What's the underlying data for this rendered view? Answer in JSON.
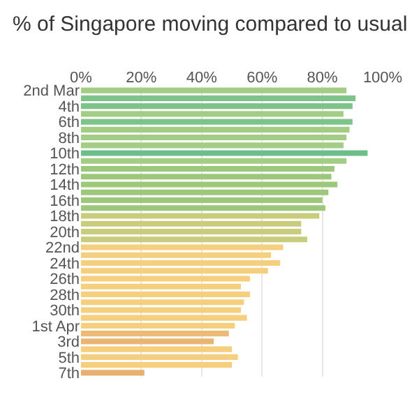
{
  "chart_data": {
    "type": "bar",
    "orientation": "horizontal",
    "title": "% of Singapore moving compared to usual",
    "categories": [
      "2nd Mar",
      null,
      "4th",
      null,
      "6th",
      null,
      "8th",
      null,
      "10th",
      null,
      "12th",
      null,
      "14th",
      null,
      "16th",
      null,
      "18th",
      null,
      "20th",
      null,
      "22nd",
      null,
      "24th",
      null,
      "26th",
      null,
      "28th",
      null,
      "30th",
      null,
      "1st Apr",
      null,
      "3rd",
      null,
      "5th",
      null,
      "7th"
    ],
    "values": [
      88,
      91,
      90,
      87,
      90,
      89,
      88,
      87,
      95,
      88,
      84,
      83,
      85,
      82,
      80,
      81,
      79,
      73,
      73,
      75,
      67,
      63,
      66,
      62,
      56,
      53,
      56,
      54,
      53,
      55,
      51,
      49,
      44,
      50,
      52,
      50,
      21
    ],
    "colors": [
      "#a3cd84",
      "#7ec48a",
      "#7ec48a",
      "#a3cd84",
      "#7ec48a",
      "#a3cd84",
      "#a3cd84",
      "#a3cd84",
      "#6cbf8a",
      "#a3cd84",
      "#9dc77a",
      "#9dc77a",
      "#9dc77a",
      "#9dc77a",
      "#9dc77a",
      "#9dc77a",
      "#c8cc7c",
      "#c8cc7c",
      "#c8cc7c",
      "#c8cc7c",
      "#f5cf7e",
      "#f5cf7e",
      "#f5cf7e",
      "#f5cf7e",
      "#f5cf7e",
      "#f5cf7e",
      "#f5cf7e",
      "#f5cf7e",
      "#f5cf7e",
      "#f5cf7e",
      "#f5cf7e",
      "#edb977",
      "#e8b573",
      "#f5cf7e",
      "#f5cf7e",
      "#f5cf7e",
      "#e8b06e"
    ],
    "xlim": [
      0,
      100
    ],
    "xticks": [
      {
        "value": 0,
        "label": "0%"
      },
      {
        "value": 20,
        "label": "20%"
      },
      {
        "value": 40,
        "label": "40%"
      },
      {
        "value": 60,
        "label": "60%"
      },
      {
        "value": 80,
        "label": "80%"
      },
      {
        "value": 100,
        "label": "100%"
      }
    ],
    "grid": "x"
  }
}
